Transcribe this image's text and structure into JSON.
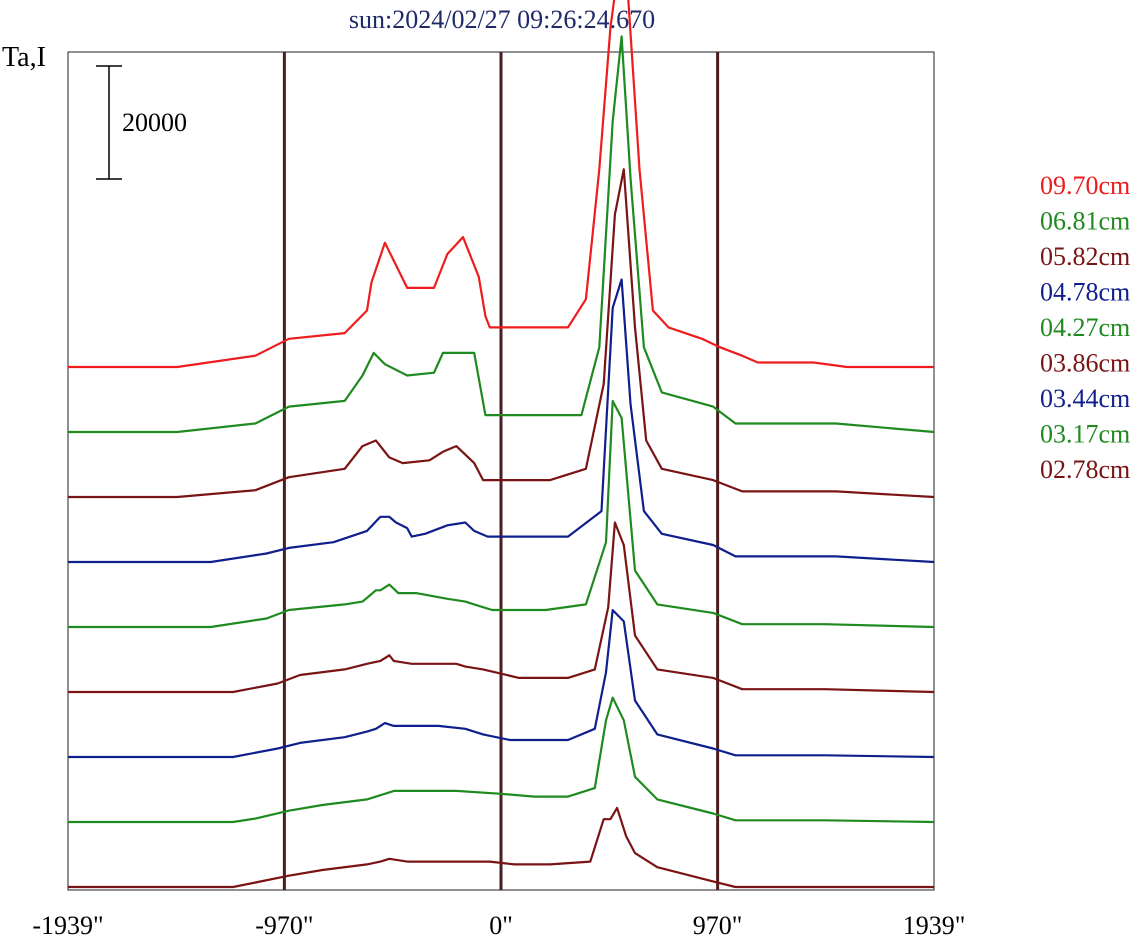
{
  "chart_data": {
    "type": "line",
    "title": "sun:2024/02/27 09:26:24.670",
    "ylabel": "Ta,I",
    "scale_bar": {
      "label": "20000",
      "value": 20000
    },
    "xlim": [
      -1939,
      1939
    ],
    "x_ticks": [
      {
        "value": -1939,
        "label": "-1939\""
      },
      {
        "value": -970,
        "label": "-970\""
      },
      {
        "value": 0,
        "label": "0\""
      },
      {
        "value": 970,
        "label": "970\""
      },
      {
        "value": 1939,
        "label": "1939\""
      }
    ],
    "vertical_lines": [
      -970,
      0,
      970
    ],
    "stack_spacing": 13000,
    "series": [
      {
        "name": "09.70cm",
        "color": "#ee1c1c",
        "points": [
          [
            -1939,
            0
          ],
          [
            -1450,
            0
          ],
          [
            -1100,
            2000
          ],
          [
            -950,
            5000
          ],
          [
            -700,
            6000
          ],
          [
            -600,
            10000
          ],
          [
            -580,
            15000
          ],
          [
            -520,
            22000
          ],
          [
            -420,
            14000
          ],
          [
            -300,
            14000
          ],
          [
            -240,
            20000
          ],
          [
            -170,
            23000
          ],
          [
            -100,
            16000
          ],
          [
            -70,
            9000
          ],
          [
            -50,
            7000
          ],
          [
            300,
            7000
          ],
          [
            380,
            12000
          ],
          [
            440,
            35000
          ],
          [
            490,
            60000
          ],
          [
            530,
            72000
          ],
          [
            570,
            65000
          ],
          [
            620,
            35000
          ],
          [
            680,
            10000
          ],
          [
            750,
            7000
          ],
          [
            900,
            5000
          ],
          [
            980,
            3500
          ],
          [
            1080,
            2000
          ],
          [
            1150,
            800
          ],
          [
            1400,
            800
          ],
          [
            1550,
            0
          ],
          [
            1939,
            0
          ]
        ]
      },
      {
        "name": "06.81cm",
        "color": "#1f8a1f",
        "points": [
          [
            -1939,
            0
          ],
          [
            -1450,
            0
          ],
          [
            -1100,
            1500
          ],
          [
            -950,
            4500
          ],
          [
            -700,
            5500
          ],
          [
            -620,
            10000
          ],
          [
            -570,
            14000
          ],
          [
            -520,
            12000
          ],
          [
            -420,
            10000
          ],
          [
            -300,
            10500
          ],
          [
            -260,
            14000
          ],
          [
            -200,
            14000
          ],
          [
            -120,
            14000
          ],
          [
            -70,
            3000
          ],
          [
            360,
            3000
          ],
          [
            440,
            15000
          ],
          [
            500,
            55000
          ],
          [
            540,
            70000
          ],
          [
            580,
            45000
          ],
          [
            640,
            15000
          ],
          [
            720,
            7000
          ],
          [
            950,
            4500
          ],
          [
            1050,
            1500
          ],
          [
            1500,
            1500
          ],
          [
            1939,
            0
          ]
        ]
      },
      {
        "name": "05.82cm",
        "color": "#7a1414",
        "points": [
          [
            -1939,
            0
          ],
          [
            -1450,
            0
          ],
          [
            -1100,
            1200
          ],
          [
            -950,
            3500
          ],
          [
            -700,
            5000
          ],
          [
            -620,
            9000
          ],
          [
            -560,
            10000
          ],
          [
            -500,
            7000
          ],
          [
            -440,
            6000
          ],
          [
            -320,
            6500
          ],
          [
            -260,
            8000
          ],
          [
            -200,
            9000
          ],
          [
            -120,
            6000
          ],
          [
            -80,
            3000
          ],
          [
            220,
            3000
          ],
          [
            380,
            5000
          ],
          [
            460,
            20000
          ],
          [
            510,
            50000
          ],
          [
            550,
            58000
          ],
          [
            600,
            30000
          ],
          [
            650,
            10000
          ],
          [
            720,
            5000
          ],
          [
            950,
            3000
          ],
          [
            1080,
            1000
          ],
          [
            1500,
            1000
          ],
          [
            1939,
            0
          ]
        ]
      },
      {
        "name": "04.78cm",
        "color": "#0f1f8c",
        "points": [
          [
            -1939,
            0
          ],
          [
            -1300,
            0
          ],
          [
            -1050,
            1500
          ],
          [
            -950,
            2500
          ],
          [
            -750,
            3500
          ],
          [
            -600,
            5500
          ],
          [
            -540,
            8000
          ],
          [
            -500,
            8000
          ],
          [
            -470,
            7000
          ],
          [
            -420,
            6000
          ],
          [
            -400,
            4500
          ],
          [
            -340,
            5000
          ],
          [
            -240,
            6500
          ],
          [
            -160,
            7000
          ],
          [
            -120,
            5500
          ],
          [
            -60,
            4500
          ],
          [
            300,
            4500
          ],
          [
            450,
            9000
          ],
          [
            500,
            45000
          ],
          [
            540,
            50000
          ],
          [
            580,
            28000
          ],
          [
            640,
            9000
          ],
          [
            720,
            5000
          ],
          [
            950,
            3000
          ],
          [
            1050,
            1000
          ],
          [
            1500,
            1000
          ],
          [
            1939,
            0
          ]
        ]
      },
      {
        "name": "04.27cm",
        "color": "#1f8a1f",
        "points": [
          [
            -1939,
            0
          ],
          [
            -1300,
            0
          ],
          [
            -1050,
            1500
          ],
          [
            -950,
            3000
          ],
          [
            -700,
            4000
          ],
          [
            -620,
            4500
          ],
          [
            -560,
            6500
          ],
          [
            -540,
            6500
          ],
          [
            -500,
            7500
          ],
          [
            -460,
            6000
          ],
          [
            -380,
            6000
          ],
          [
            -240,
            5000
          ],
          [
            -160,
            4500
          ],
          [
            -120,
            4000
          ],
          [
            -40,
            3000
          ],
          [
            200,
            3000
          ],
          [
            380,
            4000
          ],
          [
            470,
            15000
          ],
          [
            500,
            40000
          ],
          [
            540,
            37000
          ],
          [
            600,
            10000
          ],
          [
            700,
            4000
          ],
          [
            950,
            2500
          ],
          [
            1080,
            500
          ],
          [
            1450,
            500
          ],
          [
            1939,
            0
          ]
        ]
      },
      {
        "name": "03.86cm",
        "color": "#7a1414",
        "points": [
          [
            -1939,
            0
          ],
          [
            -1200,
            0
          ],
          [
            -1000,
            1500
          ],
          [
            -900,
            3000
          ],
          [
            -700,
            4000
          ],
          [
            -600,
            5000
          ],
          [
            -540,
            5500
          ],
          [
            -500,
            6500
          ],
          [
            -480,
            5500
          ],
          [
            -400,
            5000
          ],
          [
            -200,
            5000
          ],
          [
            -160,
            4500
          ],
          [
            -80,
            4000
          ],
          [
            80,
            2500
          ],
          [
            300,
            2500
          ],
          [
            420,
            4000
          ],
          [
            480,
            15000
          ],
          [
            510,
            30000
          ],
          [
            550,
            26000
          ],
          [
            600,
            10000
          ],
          [
            700,
            4000
          ],
          [
            950,
            2500
          ],
          [
            1080,
            500
          ],
          [
            1450,
            500
          ],
          [
            1939,
            0
          ]
        ]
      },
      {
        "name": "03.44cm",
        "color": "#0f1f8c",
        "points": [
          [
            -1939,
            0
          ],
          [
            -1200,
            0
          ],
          [
            -1000,
            1500
          ],
          [
            -900,
            2500
          ],
          [
            -700,
            3500
          ],
          [
            -600,
            4500
          ],
          [
            -560,
            5000
          ],
          [
            -520,
            6000
          ],
          [
            -480,
            5500
          ],
          [
            -400,
            5500
          ],
          [
            -280,
            5500
          ],
          [
            -160,
            5000
          ],
          [
            -80,
            4000
          ],
          [
            40,
            3000
          ],
          [
            300,
            3000
          ],
          [
            420,
            5000
          ],
          [
            470,
            15000
          ],
          [
            500,
            26000
          ],
          [
            550,
            24000
          ],
          [
            600,
            10000
          ],
          [
            700,
            4000
          ],
          [
            950,
            1500
          ],
          [
            1050,
            300
          ],
          [
            1450,
            300
          ],
          [
            1939,
            0
          ]
        ]
      },
      {
        "name": "03.17cm",
        "color": "#1f8a1f",
        "points": [
          [
            -1939,
            0
          ],
          [
            -1200,
            0
          ],
          [
            -1100,
            600
          ],
          [
            -950,
            2000
          ],
          [
            -800,
            3000
          ],
          [
            -600,
            4000
          ],
          [
            -520,
            5000
          ],
          [
            -480,
            5500
          ],
          [
            -400,
            5500
          ],
          [
            -200,
            5500
          ],
          [
            0,
            5000
          ],
          [
            150,
            4500
          ],
          [
            300,
            4500
          ],
          [
            420,
            6000
          ],
          [
            470,
            18000
          ],
          [
            500,
            22000
          ],
          [
            550,
            18000
          ],
          [
            600,
            8000
          ],
          [
            700,
            4000
          ],
          [
            950,
            1500
          ],
          [
            1050,
            300
          ],
          [
            1450,
            300
          ],
          [
            1939,
            0
          ]
        ]
      },
      {
        "name": "02.78cm",
        "color": "#7a1414",
        "points": [
          [
            -1939,
            0
          ],
          [
            -1200,
            0
          ],
          [
            -1100,
            800
          ],
          [
            -950,
            2000
          ],
          [
            -800,
            3000
          ],
          [
            -600,
            4000
          ],
          [
            -540,
            4500
          ],
          [
            -500,
            5000
          ],
          [
            -420,
            4500
          ],
          [
            -200,
            4500
          ],
          [
            -50,
            4500
          ],
          [
            60,
            4000
          ],
          [
            220,
            4000
          ],
          [
            400,
            4500
          ],
          [
            460,
            12000
          ],
          [
            490,
            12000
          ],
          [
            520,
            14000
          ],
          [
            560,
            9000
          ],
          [
            600,
            6000
          ],
          [
            700,
            3500
          ],
          [
            950,
            1000
          ],
          [
            1050,
            0
          ],
          [
            1939,
            0
          ]
        ]
      }
    ],
    "legend_position": "right"
  }
}
